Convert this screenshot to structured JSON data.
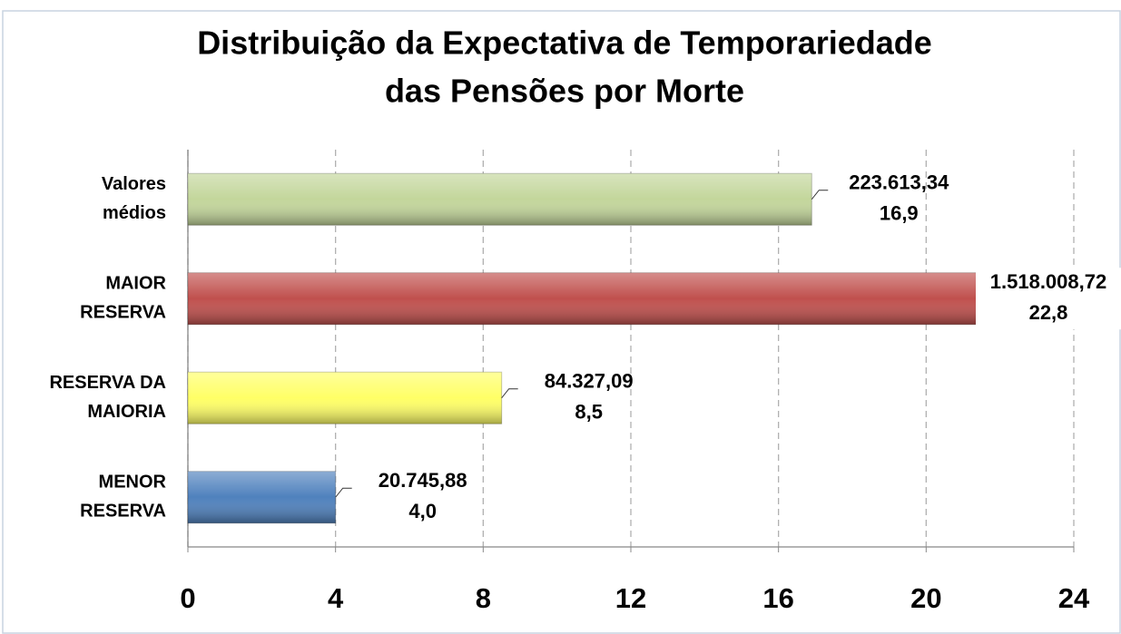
{
  "chart_data": {
    "type": "hbar",
    "title": "Distribuição da Expectativa de Temporariedade\ndas Pensões por Morte",
    "categories": [
      "Valores\nmédios",
      "MAIOR\nRESERVA",
      "RESERVA DA\nMAIORIA",
      "MENOR\nRESERVA"
    ],
    "values": [
      16.9,
      22.8,
      8.5,
      4.0
    ],
    "value_labels": [
      "16,9",
      "22,8",
      "8,5",
      "4,0"
    ],
    "annotations": [
      "223.613,34",
      "1.518.008,72",
      "84.327,09",
      "20.745,88"
    ],
    "colors": [
      "#c3d69b",
      "#c0504d",
      "#ffff66",
      "#4f81bd"
    ],
    "xlim": [
      0,
      24
    ],
    "xticks": [
      0,
      4,
      8,
      12,
      16,
      20,
      24
    ],
    "grid": true
  }
}
